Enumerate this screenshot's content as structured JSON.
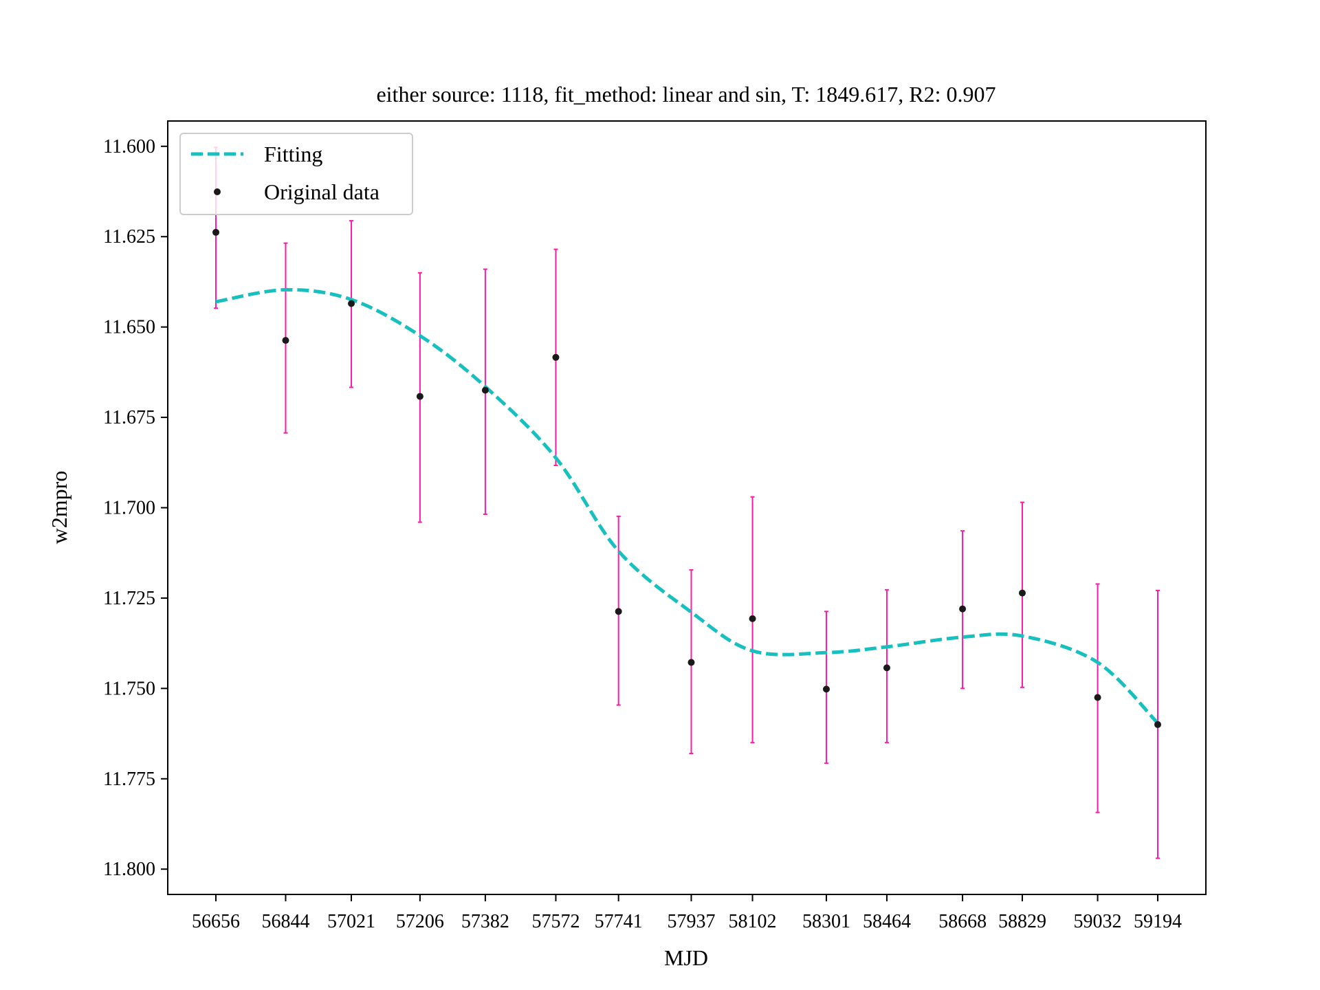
{
  "chart_data": {
    "type": "scatter",
    "title": "either source: 1118,  fit_method: linear and sin,  T: 1849.617,  R2: 0.907",
    "xlabel": "MJD",
    "ylabel": "w2mpro",
    "y_inverted": true,
    "ylim": [
      11.807,
      11.593
    ],
    "yticks": [
      11.6,
      11.625,
      11.65,
      11.675,
      11.7,
      11.725,
      11.75,
      11.775,
      11.8
    ],
    "ytick_labels": [
      "11.600",
      "11.625",
      "11.650",
      "11.675",
      "11.700",
      "11.725",
      "11.750",
      "11.775",
      "11.800"
    ],
    "x_categories": [
      "56656",
      "56844",
      "57021",
      "57206",
      "57382",
      "57572",
      "57741",
      "57937",
      "58102",
      "58301",
      "58464",
      "58668",
      "58829",
      "59032",
      "59194"
    ],
    "x_values": [
      56656,
      56844,
      57021,
      57206,
      57382,
      57572,
      57741,
      57937,
      58102,
      58301,
      58464,
      58668,
      58829,
      59032,
      59194
    ],
    "grid": false,
    "legend": {
      "placement": "top-left",
      "entries": [
        "Fitting",
        "Original data"
      ]
    },
    "colors": {
      "fit": "#17bfbf",
      "points": "#1a1a1a",
      "errorbars": "#ff1aa6"
    },
    "series": [
      {
        "name": "Original data",
        "y": [
          11.6238,
          11.6537,
          11.6435,
          11.6692,
          11.6675,
          11.6584,
          11.7287,
          11.7428,
          11.7307,
          11.7502,
          11.7443,
          11.728,
          11.7236,
          11.7525,
          11.76
        ],
        "yerr_low": [
          11.6003,
          11.6268,
          11.6206,
          11.635,
          11.634,
          11.6285,
          11.7024,
          11.7172,
          11.697,
          11.7287,
          11.7227,
          11.7064,
          11.6985,
          11.7211,
          11.7229
        ],
        "yerr_high": [
          11.6448,
          11.6793,
          11.6667,
          11.704,
          11.7018,
          11.6883,
          11.7546,
          11.768,
          11.765,
          11.7707,
          11.765,
          11.75,
          11.7497,
          11.7843,
          11.797
        ]
      },
      {
        "name": "Fitting",
        "y": [
          11.643,
          11.6397,
          11.6424,
          11.6524,
          11.6665,
          11.6862,
          11.712,
          11.7289,
          11.7396,
          11.7401,
          11.7385,
          11.7358,
          11.7355,
          11.7428,
          11.7596
        ]
      }
    ]
  }
}
